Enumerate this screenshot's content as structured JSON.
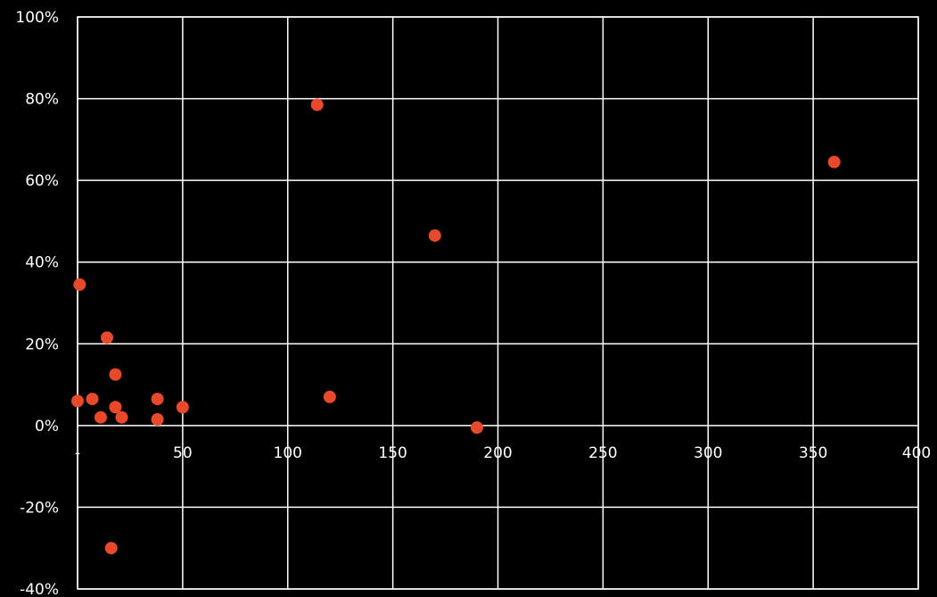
{
  "chart_data": {
    "type": "scatter",
    "title": "",
    "xlabel": "",
    "ylabel": "",
    "xlim": [
      0,
      400
    ],
    "ylim": [
      -40,
      100
    ],
    "x_ticks": [
      0,
      50,
      100,
      150,
      200,
      250,
      300,
      350,
      400
    ],
    "x_tick_labels": [
      "-",
      "50",
      "100",
      "150",
      "200",
      "250",
      "300",
      "350",
      "400"
    ],
    "y_ticks": [
      100,
      80,
      60,
      40,
      20,
      0,
      -20,
      -40
    ],
    "y_tick_labels": [
      "100%",
      "80%",
      "60%",
      "40%",
      "20%",
      "0%",
      "-20%",
      "-40%"
    ],
    "grid": true,
    "background_color": "#000000",
    "grid_color": "#ffffff",
    "text_color": "#ffffff",
    "marker_color": "#e8492b",
    "points": [
      {
        "x": 114,
        "y": 78.5
      },
      {
        "x": 360,
        "y": 64.5
      },
      {
        "x": 170,
        "y": 46.5
      },
      {
        "x": 1,
        "y": 34.5
      },
      {
        "x": 14,
        "y": 21.5
      },
      {
        "x": 18,
        "y": 12.5
      },
      {
        "x": 120,
        "y": 7
      },
      {
        "x": 0,
        "y": 6
      },
      {
        "x": 7,
        "y": 6.5
      },
      {
        "x": 38,
        "y": 6.5
      },
      {
        "x": 18,
        "y": 4.5
      },
      {
        "x": 50,
        "y": 4.5
      },
      {
        "x": 11,
        "y": 2
      },
      {
        "x": 21,
        "y": 2
      },
      {
        "x": 38,
        "y": 1.5
      },
      {
        "x": 190,
        "y": -0.5
      },
      {
        "x": 16,
        "y": -30
      }
    ]
  }
}
